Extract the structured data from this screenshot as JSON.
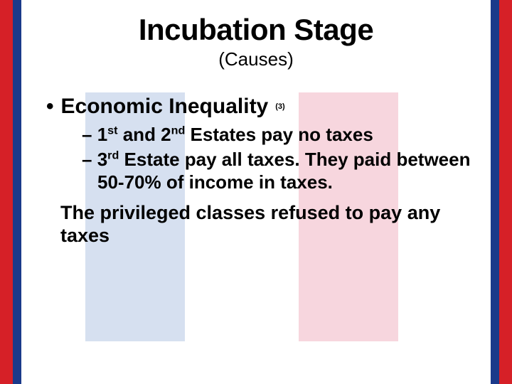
{
  "colors": {
    "border_red": "#d62027",
    "border_blue": "#1b3a8a",
    "band_blue": "#d6e0f0",
    "band_red": "#f7d6de",
    "text": "#000000",
    "background": "#ffffff"
  },
  "title": "Incubation Stage",
  "subtitle": "(Causes)",
  "bullet": {
    "marker": "•",
    "text": "Economic Inequality",
    "ref": "(3)"
  },
  "sub_items": [
    {
      "dash": "–",
      "ord1": "1",
      "suf1": "st",
      "mid": " and ",
      "ord2": "2",
      "suf2": "nd",
      "tail": " Estates pay no taxes"
    },
    {
      "dash": "–",
      "ord1": "3",
      "suf1": "rd",
      "tail": " Estate pay all taxes. They paid between 50-70% of income in taxes."
    }
  ],
  "summary": "The privileged classes refused to pay any taxes"
}
